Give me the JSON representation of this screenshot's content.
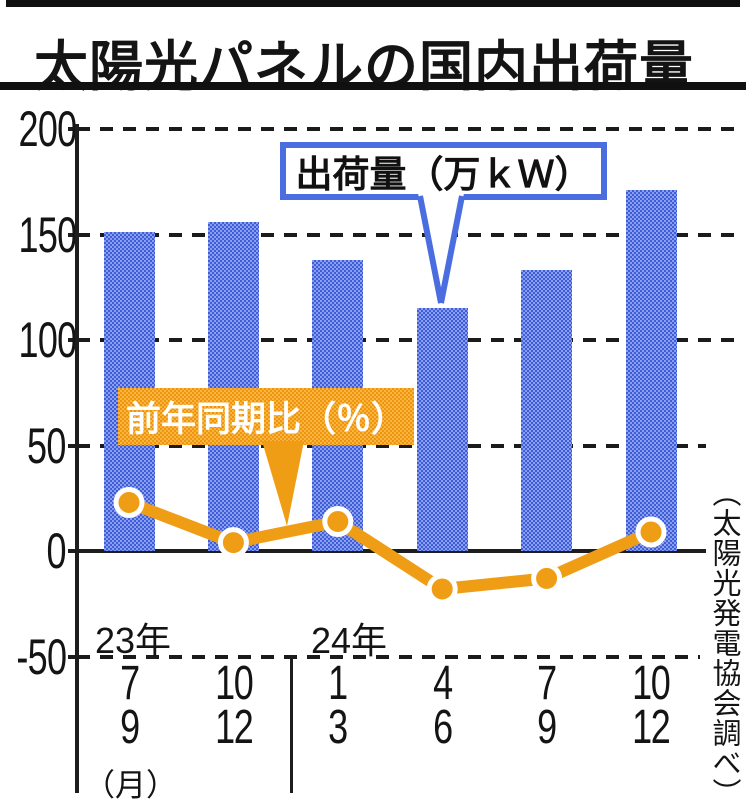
{
  "title": "太陽光パネルの国内出荷量",
  "source_note": "（太陽光発電協会調べ）",
  "chart_data": {
    "type": "bar+line combo",
    "categories": [
      "7-9",
      "10-12",
      "1-3",
      "4-6",
      "7-9",
      "10-12"
    ],
    "category_rows": [
      [
        "7",
        "9"
      ],
      [
        "10",
        "12"
      ],
      [
        "1",
        "3"
      ],
      [
        "4",
        "6"
      ],
      [
        "7",
        "9"
      ],
      [
        "10",
        "12"
      ]
    ],
    "year_groups": [
      {
        "label": "23年",
        "start_index": 0
      },
      {
        "label": "24年",
        "start_index": 2
      }
    ],
    "month_unit_label": "（月）",
    "series": [
      {
        "name": "出荷量（万ｋＷ）",
        "type": "bar",
        "values": [
          151,
          156,
          138,
          115,
          133,
          171
        ],
        "color": "#5e77e1"
      },
      {
        "name": "前年同期比（％）",
        "type": "line",
        "values": [
          23,
          4,
          14,
          -18,
          -13,
          9
        ],
        "color": "#f09d16"
      }
    ],
    "yticks": [
      200,
      150,
      100,
      50,
      0,
      -50
    ],
    "ylim": [
      -50,
      200
    ],
    "grid": "dashed-horizontal",
    "legend_position": "callout-boxes-in-plot",
    "labels": {
      "bar_callout": "出荷量（万ｋＷ）",
      "line_callout": "前年同期比（％）"
    },
    "colors": {
      "bar": "#5e77e1",
      "bar_halftone_dark": "#3f5cda",
      "bar_halftone_light": "#8aa0ec",
      "line": "#f09d16",
      "callout_border_blue": "#4a6ee0",
      "axis": "#1d1d1d",
      "text": "#141414"
    }
  }
}
